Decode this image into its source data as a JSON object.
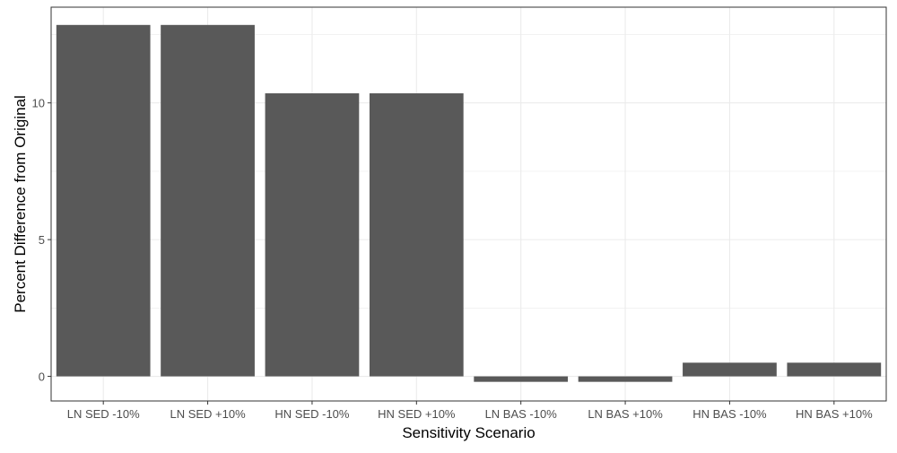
{
  "chart_data": {
    "type": "bar",
    "categories": [
      "LN SED -10%",
      "LN SED +10%",
      "HN SED -10%",
      "HN SED +10%",
      "LN BAS -10%",
      "LN BAS +10%",
      "HN BAS -10%",
      "HN BAS +10%"
    ],
    "values": [
      12.85,
      12.85,
      10.35,
      10.35,
      -0.2,
      -0.2,
      0.5,
      0.5
    ],
    "xlabel": "Sensitivity Scenario",
    "ylabel": "Percent Difference from Original",
    "ylim": [
      -0.9,
      13.5
    ],
    "yticks": [
      0,
      5,
      10
    ],
    "grid": true,
    "legend": "none",
    "colors": {
      "bar": "#595959",
      "grid": "#ebebeb",
      "panel_border": "#333333",
      "axis_text": "#4d4d4d",
      "title_text": "#000000"
    }
  }
}
